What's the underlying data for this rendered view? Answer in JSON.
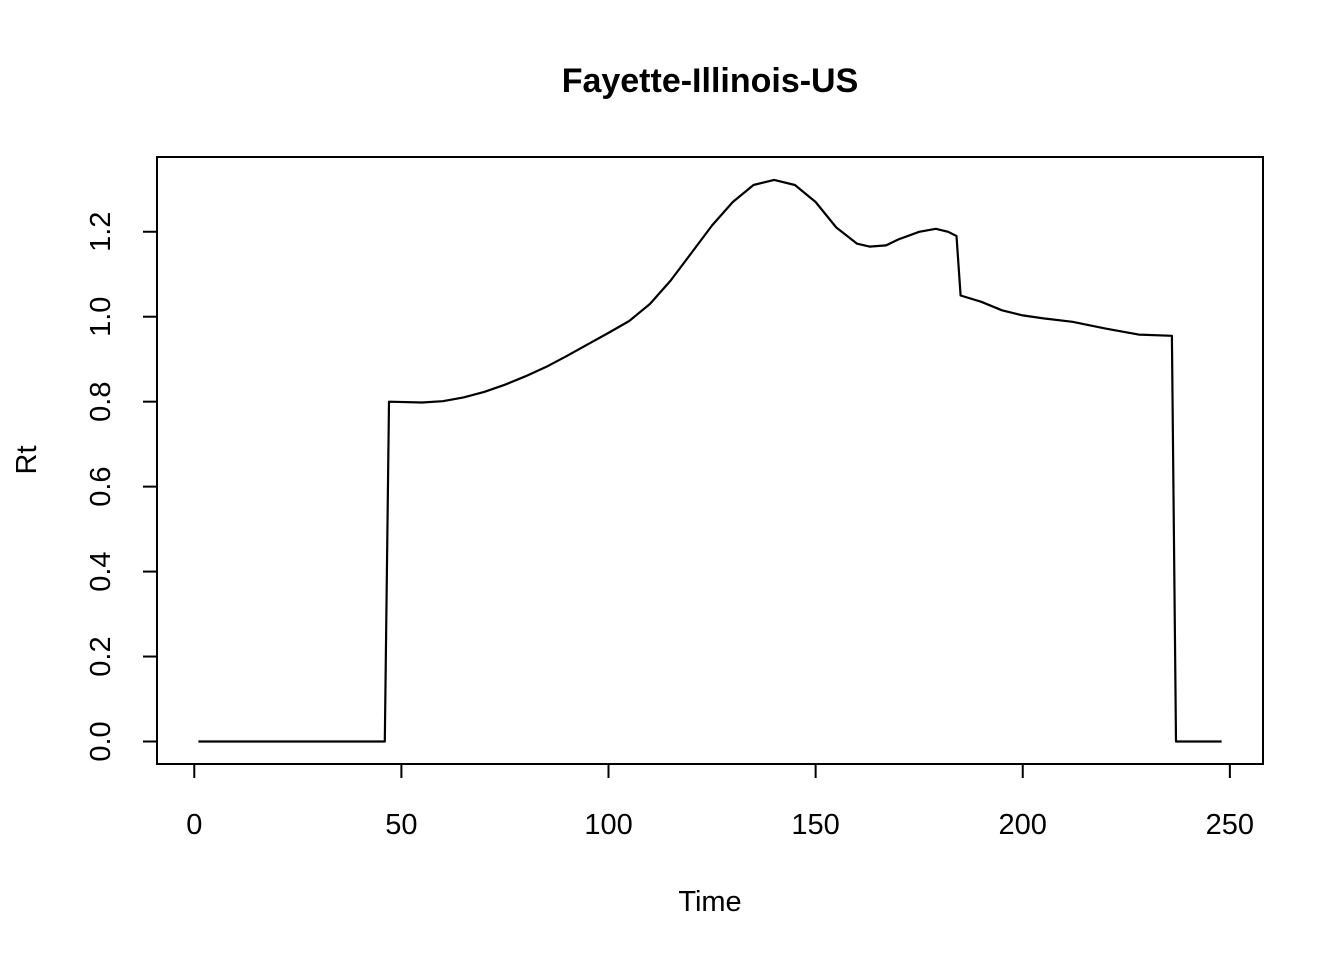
{
  "chart_data": {
    "type": "line",
    "title": "Fayette-Illinois-US",
    "xlabel": "Time",
    "ylabel": "Rt",
    "xlim": [
      -9,
      258
    ],
    "ylim": [
      -0.053,
      1.376
    ],
    "x_ticks": [
      0,
      50,
      100,
      150,
      200,
      250
    ],
    "x_tick_labels": [
      "0",
      "50",
      "100",
      "150",
      "200",
      "250"
    ],
    "y_ticks": [
      0.0,
      0.2,
      0.4,
      0.6,
      0.8,
      1.0,
      1.2
    ],
    "y_tick_labels": [
      "0.0",
      "0.2",
      "0.4",
      "0.6",
      "0.8",
      "1.0",
      "1.2"
    ],
    "grid": false,
    "series": [
      {
        "color": "#000000",
        "points": [
          [
            1,
            0.0
          ],
          [
            46,
            0.0
          ],
          [
            47,
            0.8
          ],
          [
            55,
            0.798
          ],
          [
            60,
            0.801
          ],
          [
            65,
            0.81
          ],
          [
            70,
            0.823
          ],
          [
            75,
            0.84
          ],
          [
            80,
            0.86
          ],
          [
            85,
            0.882
          ],
          [
            90,
            0.908
          ],
          [
            95,
            0.935
          ],
          [
            100,
            0.962
          ],
          [
            105,
            0.99
          ],
          [
            110,
            1.03
          ],
          [
            115,
            1.085
          ],
          [
            120,
            1.15
          ],
          [
            125,
            1.215
          ],
          [
            130,
            1.27
          ],
          [
            135,
            1.31
          ],
          [
            140,
            1.322
          ],
          [
            145,
            1.31
          ],
          [
            150,
            1.27
          ],
          [
            155,
            1.21
          ],
          [
            160,
            1.172
          ],
          [
            163,
            1.165
          ],
          [
            167,
            1.168
          ],
          [
            170,
            1.182
          ],
          [
            175,
            1.2
          ],
          [
            179,
            1.207
          ],
          [
            182,
            1.2
          ],
          [
            184,
            1.19
          ],
          [
            185,
            1.05
          ],
          [
            190,
            1.035
          ],
          [
            195,
            1.015
          ],
          [
            200,
            1.003
          ],
          [
            205,
            0.996
          ],
          [
            212,
            0.988
          ],
          [
            220,
            0.972
          ],
          [
            228,
            0.958
          ],
          [
            236,
            0.955
          ],
          [
            237,
            0.0
          ],
          [
            248,
            0.0
          ]
        ]
      }
    ]
  }
}
